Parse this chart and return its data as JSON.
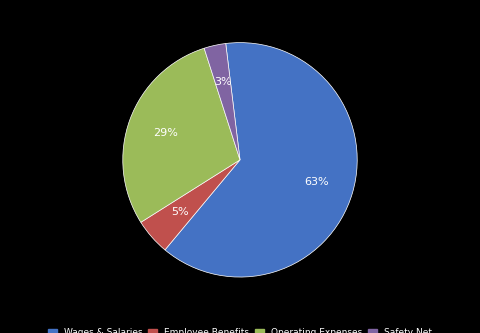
{
  "labels": [
    "Wages & Salaries",
    "Employee Benefits",
    "Operating Expenses",
    "Safety Net"
  ],
  "values": [
    63,
    5,
    29,
    3
  ],
  "colors": [
    "#4472C4",
    "#C0504D",
    "#9BBB59",
    "#8064A2"
  ],
  "startangle": 97,
  "legend_fontsize": 6.5,
  "background_color": "#000000",
  "text_color": "#ffffff",
  "figsize": [
    4.8,
    3.33
  ],
  "dpi": 100,
  "pct_fontsize": 8
}
